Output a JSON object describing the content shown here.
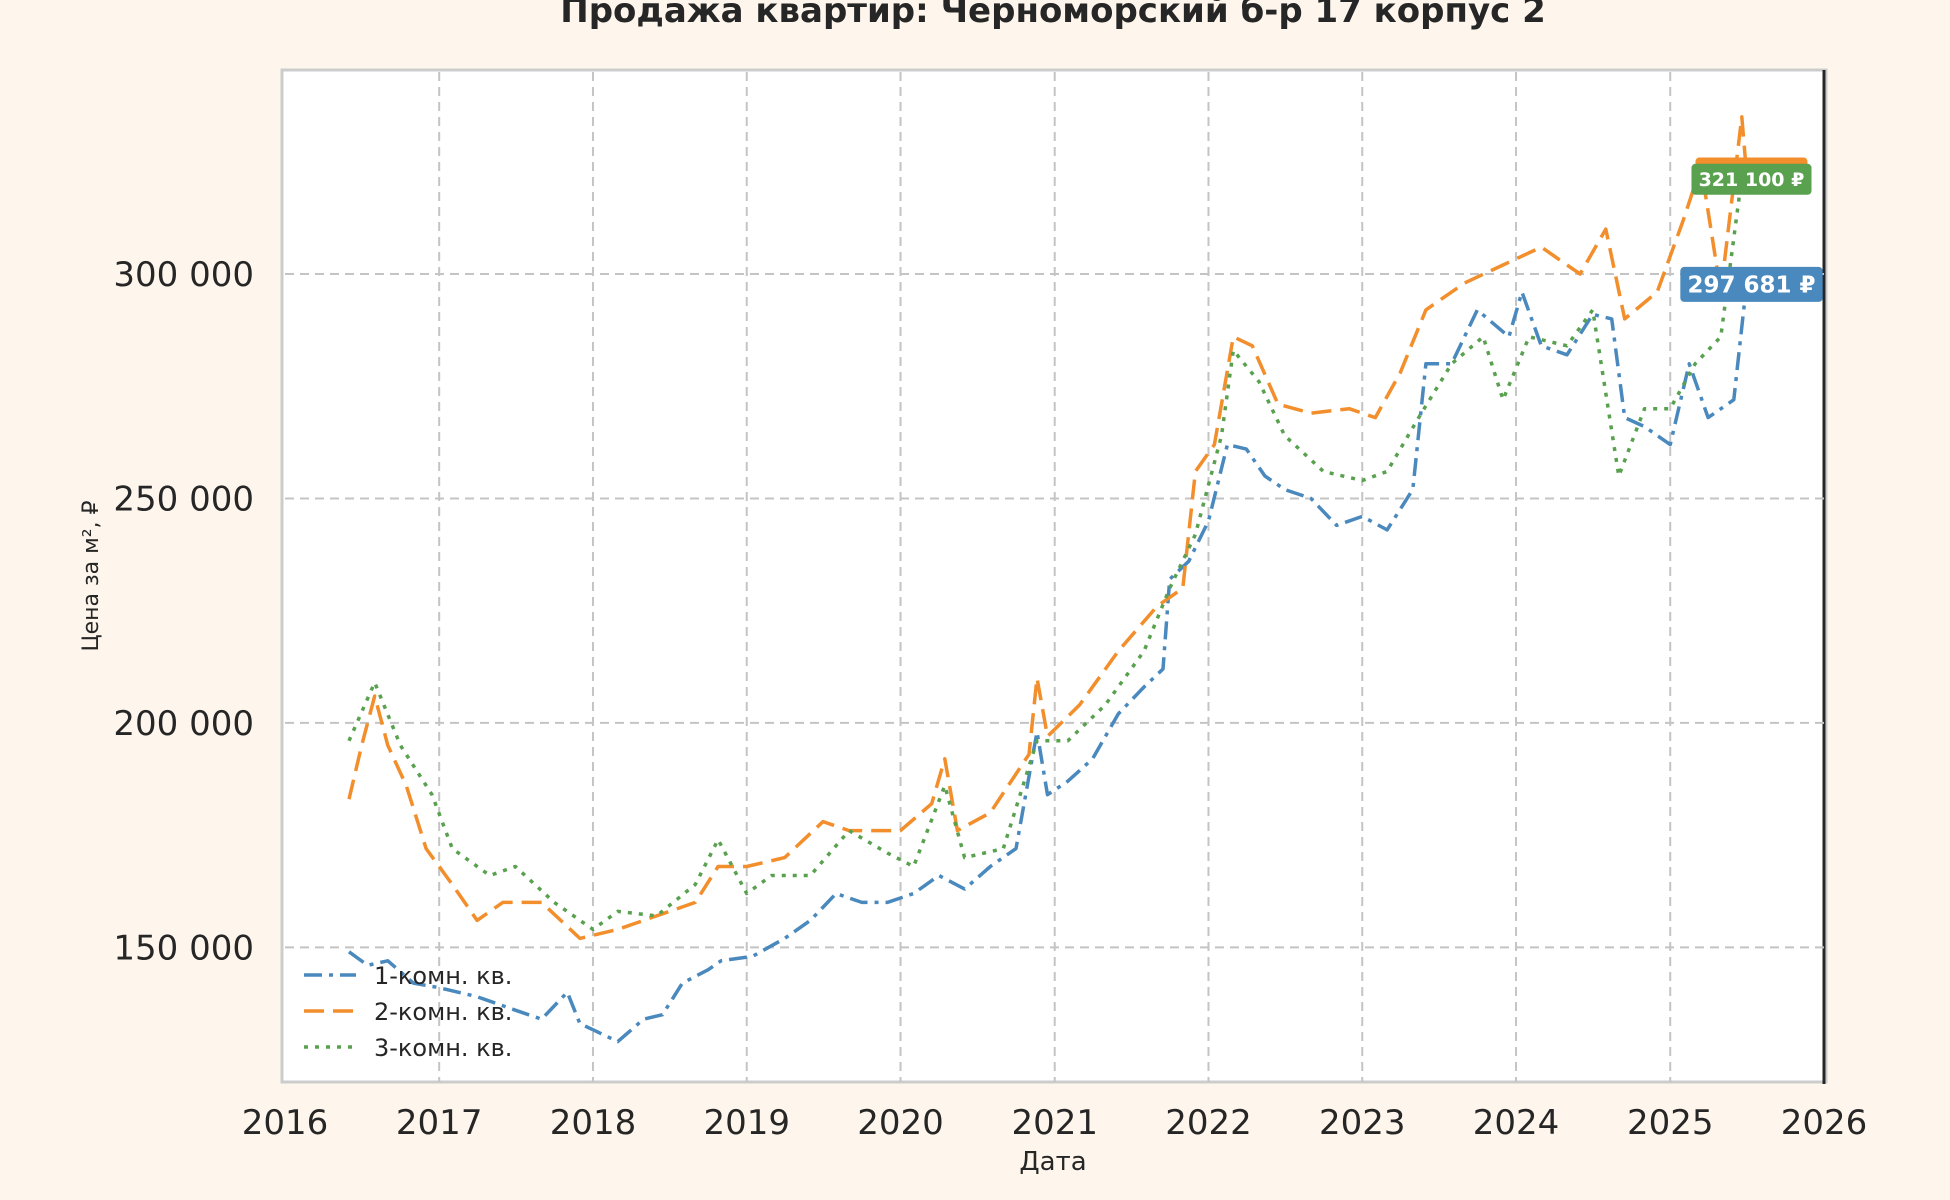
{
  "chart_data": {
    "type": "line",
    "title": "Продажа квартир: Черноморский б-р 17 корпус 2",
    "xlabel": "Дата",
    "ylabel": "Цена за м², ₽",
    "xlim": [
      "2016-01-01",
      "2026-01-01"
    ],
    "ylim": [
      120000,
      345000
    ],
    "x_ticks": [
      "2016",
      "2017",
      "2018",
      "2019",
      "2020",
      "2021",
      "2022",
      "2023",
      "2024",
      "2025",
      "2026"
    ],
    "y_ticks": [
      150000,
      200000,
      250000,
      300000
    ],
    "y_tick_labels": [
      "150 000",
      "200 000",
      "250 000",
      "300 000"
    ],
    "grid": true,
    "legend_position": "lower-left",
    "series": [
      {
        "name": "1-комн. кв.",
        "color": "#4a89bd",
        "dash": "dashdot",
        "points": [
          [
            "2016-06-01",
            149000
          ],
          [
            "2016-07-15",
            146000
          ],
          [
            "2016-09-01",
            147000
          ],
          [
            "2016-11-01",
            142000
          ],
          [
            "2017-01-01",
            141000
          ],
          [
            "2017-04-01",
            139000
          ],
          [
            "2017-07-01",
            136000
          ],
          [
            "2017-09-01",
            134000
          ],
          [
            "2017-11-01",
            140000
          ],
          [
            "2017-12-01",
            133000
          ],
          [
            "2018-01-15",
            131000
          ],
          [
            "2018-03-01",
            129000
          ],
          [
            "2018-05-01",
            134000
          ],
          [
            "2018-06-15",
            135000
          ],
          [
            "2018-08-01",
            142000
          ],
          [
            "2018-10-01",
            145000
          ],
          [
            "2018-11-01",
            147000
          ],
          [
            "2019-01-15",
            148000
          ],
          [
            "2019-04-01",
            152000
          ],
          [
            "2019-06-01",
            156000
          ],
          [
            "2019-08-01",
            162000
          ],
          [
            "2019-10-01",
            160000
          ],
          [
            "2019-12-01",
            160000
          ],
          [
            "2020-02-01",
            162000
          ],
          [
            "2020-04-01",
            166000
          ],
          [
            "2020-06-01",
            163000
          ],
          [
            "2020-08-01",
            168000
          ],
          [
            "2020-10-01",
            172000
          ],
          [
            "2020-11-20",
            198000
          ],
          [
            "2020-12-15",
            184000
          ],
          [
            "2021-02-01",
            187000
          ],
          [
            "2021-04-01",
            192000
          ],
          [
            "2021-06-01",
            202000
          ],
          [
            "2021-08-01",
            208000
          ],
          [
            "2021-09-15",
            212000
          ],
          [
            "2021-10-01",
            232000
          ],
          [
            "2021-11-15",
            236000
          ],
          [
            "2022-01-01",
            245000
          ],
          [
            "2022-02-15",
            262000
          ],
          [
            "2022-04-01",
            261000
          ],
          [
            "2022-05-15",
            255000
          ],
          [
            "2022-07-01",
            252000
          ],
          [
            "2022-09-01",
            250000
          ],
          [
            "2022-11-01",
            244000
          ],
          [
            "2023-01-01",
            246000
          ],
          [
            "2023-03-01",
            243000
          ],
          [
            "2023-05-01",
            252000
          ],
          [
            "2023-06-01",
            280000
          ],
          [
            "2023-08-01",
            280000
          ],
          [
            "2023-10-01",
            292000
          ],
          [
            "2023-12-15",
            286000
          ],
          [
            "2024-01-15",
            296000
          ],
          [
            "2024-03-01",
            284000
          ],
          [
            "2024-05-01",
            282000
          ],
          [
            "2024-07-01",
            291000
          ],
          [
            "2024-08-15",
            290000
          ],
          [
            "2024-09-15",
            268000
          ],
          [
            "2024-11-01",
            266000
          ],
          [
            "2025-01-01",
            262000
          ],
          [
            "2025-02-15",
            280000
          ],
          [
            "2025-04-01",
            268000
          ],
          [
            "2025-06-01",
            272000
          ],
          [
            "2025-07-01",
            297681
          ]
        ]
      },
      {
        "name": "2-комн. кв.",
        "color": "#f28e2b",
        "dash": "dashed",
        "points": [
          [
            "2016-06-01",
            183000
          ],
          [
            "2016-07-01",
            195000
          ],
          [
            "2016-08-01",
            206000
          ],
          [
            "2016-09-01",
            195000
          ],
          [
            "2016-10-15",
            186000
          ],
          [
            "2016-12-01",
            172000
          ],
          [
            "2017-02-01",
            164000
          ],
          [
            "2017-04-01",
            156000
          ],
          [
            "2017-06-01",
            160000
          ],
          [
            "2017-09-01",
            160000
          ],
          [
            "2017-12-01",
            152000
          ],
          [
            "2018-03-01",
            154000
          ],
          [
            "2018-06-01",
            157000
          ],
          [
            "2018-09-01",
            160000
          ],
          [
            "2018-10-25",
            168000
          ],
          [
            "2019-01-01",
            168000
          ],
          [
            "2019-04-01",
            170000
          ],
          [
            "2019-07-01",
            178000
          ],
          [
            "2019-09-01",
            176000
          ],
          [
            "2020-01-01",
            176000
          ],
          [
            "2020-03-15",
            182000
          ],
          [
            "2020-04-15",
            192000
          ],
          [
            "2020-05-15",
            176000
          ],
          [
            "2020-08-01",
            180000
          ],
          [
            "2020-11-01",
            193000
          ],
          [
            "2020-11-20",
            210000
          ],
          [
            "2020-12-15",
            197000
          ],
          [
            "2021-03-01",
            204000
          ],
          [
            "2021-06-01",
            216000
          ],
          [
            "2021-09-01",
            226000
          ],
          [
            "2021-11-01",
            230000
          ],
          [
            "2021-12-01",
            256000
          ],
          [
            "2022-01-15",
            262000
          ],
          [
            "2022-03-01",
            286000
          ],
          [
            "2022-04-15",
            284000
          ],
          [
            "2022-06-15",
            271000
          ],
          [
            "2022-09-01",
            269000
          ],
          [
            "2022-12-01",
            270000
          ],
          [
            "2023-02-01",
            268000
          ],
          [
            "2023-04-01",
            278000
          ],
          [
            "2023-06-01",
            292000
          ],
          [
            "2023-09-01",
            298000
          ],
          [
            "2023-12-01",
            302000
          ],
          [
            "2024-03-01",
            306000
          ],
          [
            "2024-06-01",
            300000
          ],
          [
            "2024-08-01",
            310000
          ],
          [
            "2024-09-15",
            290000
          ],
          [
            "2024-12-01",
            296000
          ],
          [
            "2025-02-01",
            312000
          ],
          [
            "2025-03-15",
            324000
          ],
          [
            "2025-05-01",
            296000
          ],
          [
            "2025-06-20",
            335000
          ],
          [
            "2025-07-01",
            322500
          ]
        ]
      },
      {
        "name": "3-комн. кв.",
        "color": "#59a14f",
        "dash": "dotted",
        "points": [
          [
            "2016-06-01",
            196000
          ],
          [
            "2016-08-01",
            209000
          ],
          [
            "2016-10-01",
            195000
          ],
          [
            "2016-12-15",
            184000
          ],
          [
            "2017-02-01",
            172000
          ],
          [
            "2017-05-01",
            166000
          ],
          [
            "2017-07-01",
            168000
          ],
          [
            "2017-10-01",
            160000
          ],
          [
            "2018-01-01",
            154000
          ],
          [
            "2018-03-01",
            158000
          ],
          [
            "2018-06-01",
            157000
          ],
          [
            "2018-09-01",
            164000
          ],
          [
            "2018-10-25",
            174000
          ],
          [
            "2019-01-01",
            162000
          ],
          [
            "2019-03-01",
            166000
          ],
          [
            "2019-06-01",
            166000
          ],
          [
            "2019-09-01",
            176000
          ],
          [
            "2019-12-01",
            171000
          ],
          [
            "2020-02-01",
            168000
          ],
          [
            "2020-04-15",
            186000
          ],
          [
            "2020-06-01",
            170000
          ],
          [
            "2020-09-01",
            172000
          ],
          [
            "2020-11-20",
            196000
          ],
          [
            "2021-02-01",
            196000
          ],
          [
            "2021-05-01",
            204000
          ],
          [
            "2021-08-01",
            216000
          ],
          [
            "2021-10-01",
            230000
          ],
          [
            "2021-12-01",
            242000
          ],
          [
            "2022-02-01",
            264000
          ],
          [
            "2022-03-01",
            283000
          ],
          [
            "2022-05-01",
            276000
          ],
          [
            "2022-07-01",
            264000
          ],
          [
            "2022-10-01",
            256000
          ],
          [
            "2023-01-01",
            254000
          ],
          [
            "2023-03-01",
            256000
          ],
          [
            "2023-05-15",
            268000
          ],
          [
            "2023-08-01",
            280000
          ],
          [
            "2023-10-15",
            286000
          ],
          [
            "2023-12-01",
            272000
          ],
          [
            "2024-02-01",
            286000
          ],
          [
            "2024-05-01",
            284000
          ],
          [
            "2024-07-01",
            292000
          ],
          [
            "2024-09-01",
            255000
          ],
          [
            "2024-11-01",
            270000
          ],
          [
            "2025-01-01",
            270000
          ],
          [
            "2025-03-01",
            280000
          ],
          [
            "2025-05-01",
            286000
          ],
          [
            "2025-06-15",
            318000
          ],
          [
            "2025-07-01",
            321100
          ]
        ]
      }
    ],
    "end_labels": [
      {
        "series": "2-комн. кв.",
        "text": "",
        "color": "#f28e2b",
        "value": 322500
      },
      {
        "series": "3-комн. кв.",
        "text": "321 100 ₽",
        "color": "#59a14f",
        "value": 321100
      },
      {
        "series": "1-комн. кв.",
        "text": "297 681 ₽",
        "color": "#4a89bd",
        "value": 297681
      }
    ]
  }
}
